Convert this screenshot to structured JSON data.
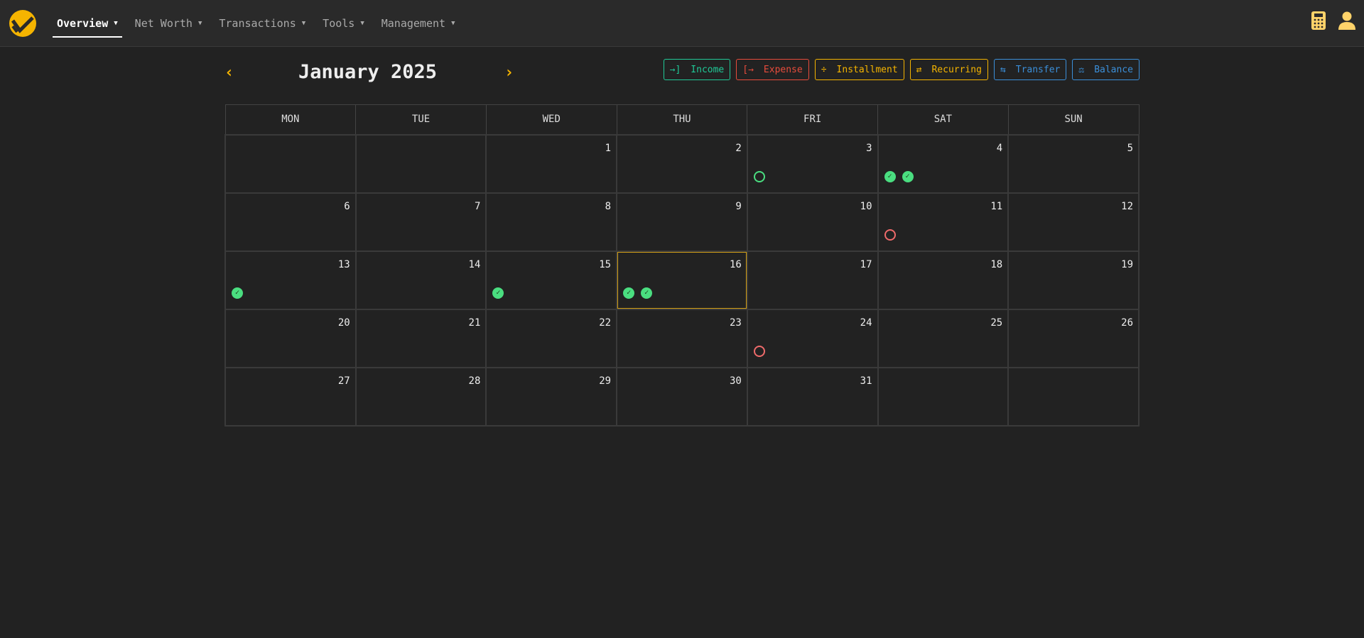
{
  "nav": {
    "items": [
      {
        "label": "Overview",
        "active": true
      },
      {
        "label": "Net Worth"
      },
      {
        "label": "Transactions"
      },
      {
        "label": "Tools"
      },
      {
        "label": "Management"
      }
    ]
  },
  "calendar": {
    "title": "January 2025",
    "prev": "‹",
    "next": "›",
    "actions": [
      {
        "label": "Income",
        "icon": "→]",
        "color": "#20c997"
      },
      {
        "label": "Expense",
        "icon": "[→",
        "color": "#e74c3c"
      },
      {
        "label": "Installment",
        "icon": "÷",
        "color": "#f5b400"
      },
      {
        "label": "Recurring",
        "icon": "⇄",
        "color": "#f5b400"
      },
      {
        "label": "Transfer",
        "icon": "⇆",
        "color": "#3b8fd9"
      },
      {
        "label": "Balance",
        "icon": "⚖",
        "color": "#3b8fd9"
      }
    ],
    "weekdays": [
      "MON",
      "TUE",
      "WED",
      "THU",
      "FRI",
      "SAT",
      "SUN"
    ],
    "today": 16,
    "weeks": [
      [
        null,
        null,
        {
          "d": "1"
        },
        {
          "d": "2"
        },
        {
          "d": "3",
          "m": [
            "pending-green"
          ]
        },
        {
          "d": "4",
          "m": [
            "done",
            "done"
          ]
        },
        {
          "d": "5"
        }
      ],
      [
        {
          "d": "6"
        },
        {
          "d": "7"
        },
        {
          "d": "8"
        },
        {
          "d": "9"
        },
        {
          "d": "10"
        },
        {
          "d": "11",
          "m": [
            "pending-red"
          ]
        },
        {
          "d": "12"
        }
      ],
      [
        {
          "d": "13",
          "m": [
            "done"
          ]
        },
        {
          "d": "14"
        },
        {
          "d": "15",
          "m": [
            "done"
          ]
        },
        {
          "d": "16",
          "m": [
            "done",
            "done"
          ]
        },
        {
          "d": "17"
        },
        {
          "d": "18"
        },
        {
          "d": "19"
        }
      ],
      [
        {
          "d": "20"
        },
        {
          "d": "21"
        },
        {
          "d": "22"
        },
        {
          "d": "23"
        },
        {
          "d": "24",
          "m": [
            "pending-red"
          ]
        },
        {
          "d": "25"
        },
        {
          "d": "26"
        }
      ],
      [
        {
          "d": "27"
        },
        {
          "d": "28"
        },
        {
          "d": "29"
        },
        {
          "d": "30"
        },
        {
          "d": "31"
        },
        null,
        null
      ]
    ]
  }
}
